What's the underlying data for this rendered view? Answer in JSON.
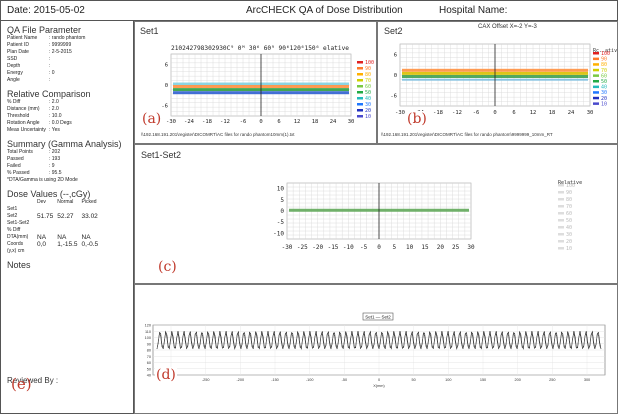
{
  "header": {
    "date": "Date: 2015-05-02",
    "title": "ArcCHECK QA of Dose Distribution",
    "hospital": "Hospital Name:"
  },
  "qa_file": {
    "title": "QA File Parameter",
    "rows": [
      {
        "k": "Patient Name",
        "v": ": rando phantom"
      },
      {
        "k": "Patient ID",
        "v": ": 9999999"
      },
      {
        "k": "Plan Date",
        "v": ": 2-5-2015"
      },
      {
        "k": "SSD",
        "v": ":"
      },
      {
        "k": "Depth",
        "v": ":"
      },
      {
        "k": "Energy",
        "v": ": 0"
      },
      {
        "k": "Angle",
        "v": ":"
      }
    ]
  },
  "relative": {
    "title": "Relative Comparison",
    "rows": [
      {
        "k": "% Diff",
        "v": ": 2.0"
      },
      {
        "k": "Distance (mm)",
        "v": ": 2.0"
      },
      {
        "k": "Threshold",
        "v": ": 10.0"
      },
      {
        "k": "Rotation Angle",
        "v": ": 0.0 Degs"
      },
      {
        "k": "Meas Uncertainty",
        "v": ": Yes"
      }
    ]
  },
  "summary": {
    "title": "Summary (Gamma Analysis)",
    "rows": [
      {
        "k": "Total Points",
        "v": ": 202"
      },
      {
        "k": "Passed",
        "v": ": 193"
      },
      {
        "k": "Failed",
        "v": ": 9"
      },
      {
        "k": "% Passed",
        "v": ": 95.5"
      }
    ],
    "note": "*DTA/Gamma is using 2D Mode"
  },
  "dose": {
    "title": "Dose Values (--,cGy)",
    "headers": [
      "",
      "Dev",
      "Normal",
      "Picked"
    ],
    "rows": [
      [
        "Set1",
        "",
        "",
        ""
      ],
      [
        "Set2",
        "51.75",
        "52.27",
        "33.02"
      ],
      [
        "Set1-Set2",
        "",
        "",
        ""
      ],
      [
        "% Diff",
        "",
        "",
        ""
      ],
      [
        "DTA(mm)",
        "NA",
        "NA",
        "NA"
      ],
      [
        "Coords",
        "0,0",
        "1,-15.5",
        "0,-0.5"
      ],
      [
        "(y,x) cm",
        "",
        "",
        ""
      ]
    ]
  },
  "notes_title": "Notes",
  "reviewed_by": "Reviewed By :",
  "labels": {
    "a": "(a)",
    "b": "(b)",
    "c": "(c)",
    "d": "(d)",
    "e": "(e)"
  },
  "set1": {
    "title": "Set1",
    "top_text": "210242798302930C⁹ 0ᴹ 30⁶ 60⁹ 90⁶120⁶150⁶ elative",
    "xticks": [
      "-30",
      "-24",
      "-18",
      "-12",
      "-6",
      "0",
      "6",
      "12",
      "18",
      "24",
      "30"
    ],
    "yticks": [
      "6",
      "0",
      "-6"
    ],
    "legend": [
      "100",
      "90",
      "80",
      "70",
      "60",
      "50",
      "40",
      "30",
      "20",
      "10"
    ],
    "footer": "\\\\192.168.191.201\\register\\DICOMRT\\AC files for rando phantom10mm(1).txt"
  },
  "set2": {
    "title": "Set2",
    "subtitle": "CAX Offset X=-2 Y=-3",
    "xticks": [
      "-30",
      "-24",
      "-18",
      "-12",
      "-6",
      "0",
      "6",
      "12",
      "18",
      "24",
      "30"
    ],
    "yticks": [
      "6",
      "0",
      "-6"
    ],
    "legend_title": "Rc..ative",
    "legend": [
      "100",
      "90",
      "80",
      "70",
      "60",
      "50",
      "40",
      "30",
      "20",
      "10"
    ],
    "footer": "\\\\192.168.191.201\\register\\DICOMRT\\AC files for rando phantom\\9999999_10mm_RT"
  },
  "diff": {
    "title": "Set1-Set2",
    "xticks": [
      "-30",
      "-25",
      "-20",
      "-15",
      "-10",
      "-5",
      "0",
      "5",
      "10",
      "15",
      "20",
      "25",
      "30"
    ],
    "yticks": [
      "10",
      "5",
      "0",
      "-5",
      "-10"
    ],
    "legend_title": "Relative",
    "legend": [
      "100",
      "90",
      "80",
      "70",
      "60",
      "50",
      "40",
      "30",
      "20",
      "10"
    ]
  },
  "profile": {
    "legend": "Set1 — Set2",
    "yticks": [
      "120",
      "110",
      "100",
      "90",
      "80",
      "70",
      "60",
      "50",
      "40"
    ],
    "xticks": [
      "-300",
      "-250",
      "-200",
      "-150",
      "-100",
      "-50",
      "0",
      "50",
      "100",
      "150",
      "200",
      "250",
      "300"
    ],
    "xlabel": "X(mm)"
  },
  "colors": {
    "legend": [
      "#e02020",
      "#ff7a2a",
      "#ffb000",
      "#cfcf00",
      "#7ac943",
      "#22aa44",
      "#22bbbb",
      "#1f77ff",
      "#1f2fbf",
      "#4a4acc"
    ]
  }
}
